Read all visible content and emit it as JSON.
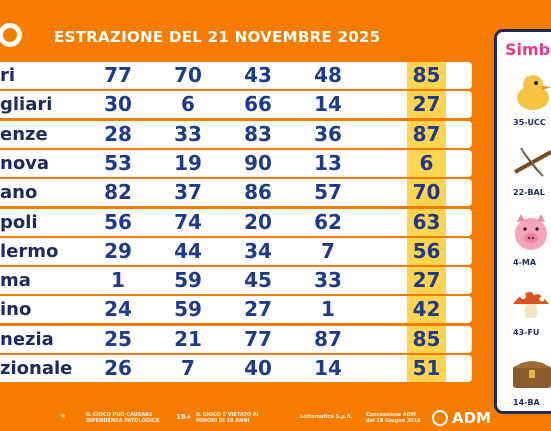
{
  "header": {
    "title": "ESTRAZIONE DEL 21 NOVEMBRE 2025"
  },
  "table": {
    "rows": [
      {
        "city": "ri",
        "n": [
          "77",
          "70",
          "43",
          "48"
        ],
        "last": "85"
      },
      {
        "city": "gliari",
        "n": [
          "30",
          "6",
          "66",
          "14"
        ],
        "last": "27"
      },
      {
        "city": "enze",
        "n": [
          "28",
          "33",
          "83",
          "36"
        ],
        "last": "87"
      },
      {
        "city": "nova",
        "n": [
          "53",
          "19",
          "90",
          "13"
        ],
        "last": "6"
      },
      {
        "city": "ano",
        "n": [
          "82",
          "37",
          "86",
          "57"
        ],
        "last": "70"
      },
      {
        "city": "poli",
        "n": [
          "56",
          "74",
          "20",
          "62"
        ],
        "last": "63"
      },
      {
        "city": "lermo",
        "n": [
          "29",
          "44",
          "34",
          "7"
        ],
        "last": "56"
      },
      {
        "city": "ma",
        "n": [
          "1",
          "59",
          "45",
          "33"
        ],
        "last": "27"
      },
      {
        "city": "ino",
        "n": [
          "24",
          "59",
          "27",
          "1"
        ],
        "last": "42"
      },
      {
        "city": "nezia",
        "n": [
          "25",
          "21",
          "77",
          "87"
        ],
        "last": "85"
      },
      {
        "city": "zionale",
        "n": [
          "26",
          "7",
          "40",
          "14"
        ],
        "last": "51"
      }
    ]
  },
  "panel": {
    "title": "Simbo",
    "symbols": [
      {
        "caption": "35-UCC",
        "icon": "bird-icon"
      },
      {
        "caption": "22-BAL",
        "icon": "crossbow-icon"
      },
      {
        "caption": "4-MA",
        "icon": "pig-icon"
      },
      {
        "caption": "43-FU",
        "icon": "mushroom-icon"
      },
      {
        "caption": "14-BA",
        "icon": "chest-icon"
      }
    ]
  },
  "footer": {
    "warning": "IL GIOCO PUÒ CAUSARE DIPENDENZA PATOLOGICA",
    "age": "18+",
    "age_text": "IL GIOCO È VIETATO AI MINORI DI 18 ANNI",
    "operator": "Lottomatica S.p.A.",
    "adm_note": "Concessione ADM del 28 Giugno 2016",
    "adm_label": "ADM"
  },
  "colors": {
    "background": "#f57c00",
    "highlight": "#ffd54f",
    "number": "#1e3a8a"
  }
}
